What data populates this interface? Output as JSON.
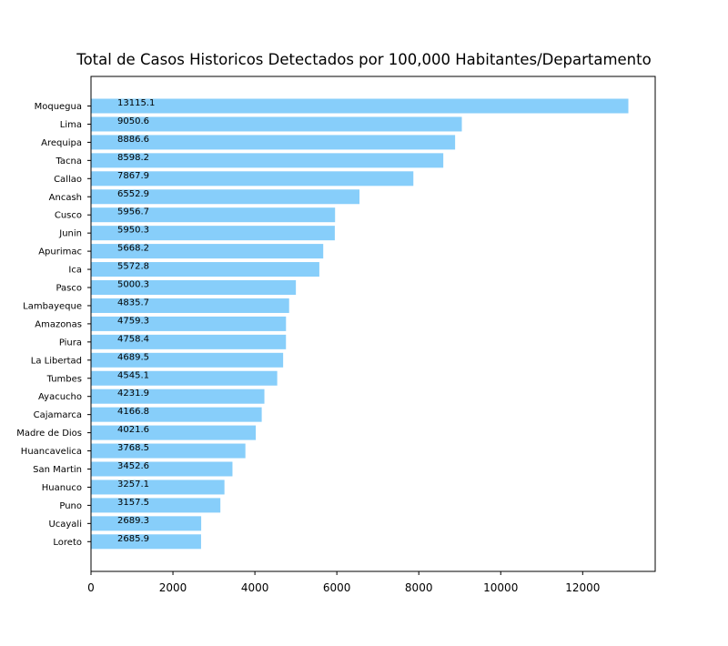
{
  "chart_data": {
    "type": "bar",
    "orientation": "horizontal",
    "title": "Total de Casos Historicos Detectados por 100,000 Habitantes/Departamento",
    "xlabel": "",
    "ylabel": "",
    "xlim": [
      0,
      13770
    ],
    "xticks": [
      0,
      2000,
      4000,
      6000,
      8000,
      10000,
      12000
    ],
    "grid": false,
    "legend": "none",
    "bar_color": "#87cefa",
    "categories": [
      "Moquegua",
      "Lima",
      "Arequipa",
      "Tacna",
      "Callao",
      "Ancash",
      "Cusco",
      "Junin",
      "Apurimac",
      "Ica",
      "Pasco",
      "Lambayeque",
      "Amazonas",
      "Piura",
      "La Libertad",
      "Tumbes",
      "Ayacucho",
      "Cajamarca",
      "Madre de Dios",
      "Huancavelica",
      "San Martin",
      "Huanuco",
      "Puno",
      "Ucayali",
      "Loreto"
    ],
    "values": [
      13115.1,
      9050.6,
      8886.6,
      8598.2,
      7867.9,
      6552.9,
      5956.7,
      5950.3,
      5668.2,
      5572.8,
      5000.3,
      4835.7,
      4759.3,
      4758.4,
      4689.5,
      4545.1,
      4231.9,
      4166.8,
      4021.6,
      3768.5,
      3452.6,
      3257.1,
      3157.5,
      2689.3,
      2685.9
    ],
    "data_labels": [
      "13115.1",
      "9050.6",
      "8886.6",
      "8598.2",
      "7867.9",
      "6552.9",
      "5956.7",
      "5950.3",
      "5668.2",
      "5572.8",
      "5000.3",
      "4835.7",
      "4759.3",
      "4758.4",
      "4689.5",
      "4545.1",
      "4231.9",
      "4166.8",
      "4021.6",
      "3768.5",
      "3452.6",
      "3257.1",
      "3157.5",
      "2689.3",
      "2685.9"
    ]
  }
}
